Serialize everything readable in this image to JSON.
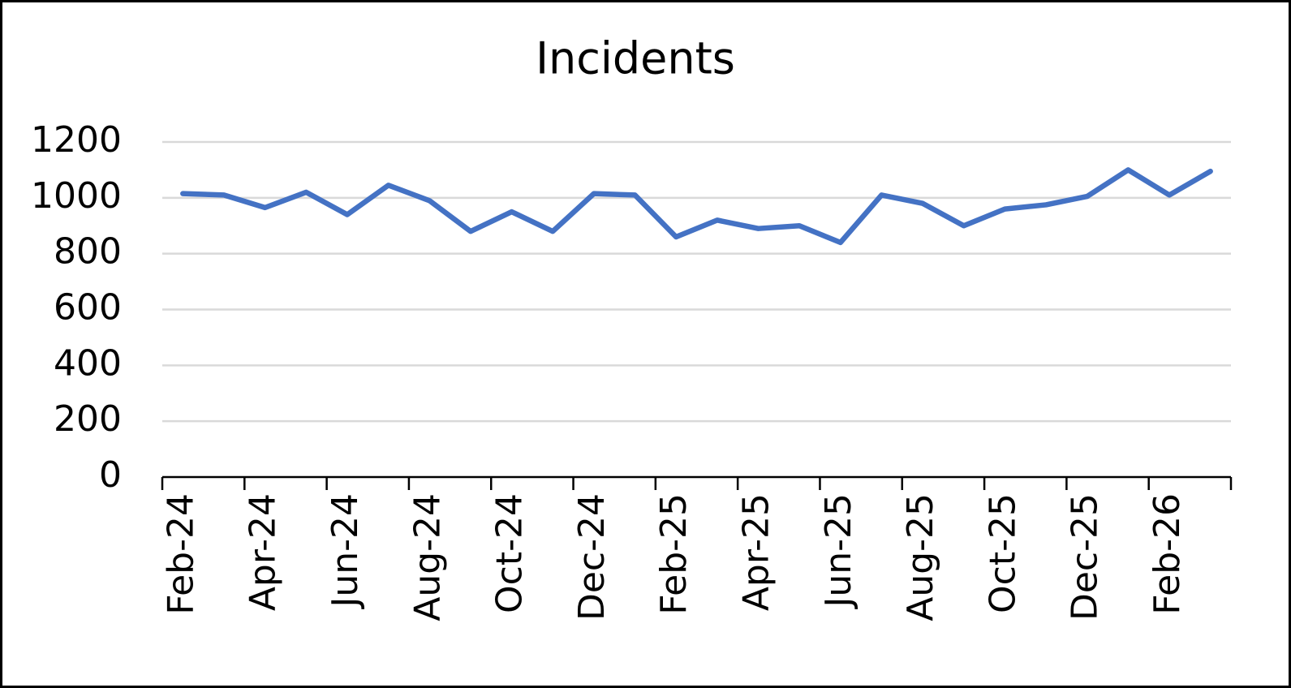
{
  "chart_data": {
    "type": "line",
    "title": "Incidents",
    "categories": [
      "Feb-24",
      null,
      "Apr-24",
      null,
      "Jun-24",
      null,
      "Aug-24",
      null,
      "Oct-24",
      null,
      "Dec-24",
      null,
      "Feb-25",
      null,
      "Apr-25",
      null,
      "Jun-25",
      null,
      "Aug-25",
      null,
      "Oct-25",
      null,
      "Dec-25",
      null,
      "Feb-26",
      null
    ],
    "series": [
      {
        "name": "Incidents",
        "color": "#4472c4",
        "values": [
          1015,
          1010,
          965,
          1020,
          940,
          1045,
          990,
          880,
          950,
          880,
          1015,
          1010,
          860,
          920,
          890,
          900,
          840,
          1010,
          980,
          900,
          960,
          975,
          1005,
          1100,
          1010,
          1095
        ]
      }
    ],
    "ylim": [
      0,
      1200
    ],
    "yticks": [
      0,
      200,
      400,
      600,
      800,
      1000,
      1200
    ],
    "grid": true
  }
}
